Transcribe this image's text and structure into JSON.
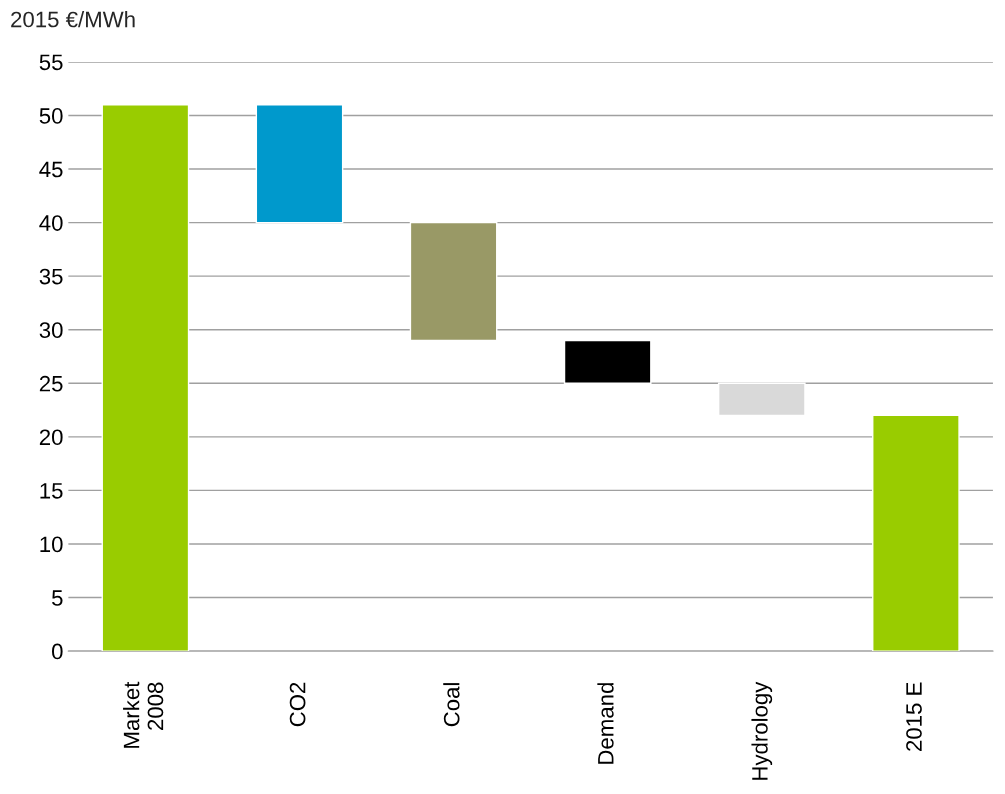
{
  "chart_data": {
    "type": "bar",
    "ylabel": "2015 €/MWh",
    "categories": [
      "Market\n2008",
      "CO2",
      "Coal",
      "Demand",
      "Hydrology",
      "2015 E"
    ],
    "values": [
      51,
      11,
      11,
      4,
      3,
      22
    ],
    "base": [
      0,
      40,
      29,
      25,
      22,
      0
    ],
    "colors": [
      "#99cc00",
      "#0099cc",
      "#999966",
      "#000000",
      "#d9d9d9",
      "#99cc00"
    ],
    "ylim": [
      0,
      55
    ],
    "yticks": [
      0,
      5,
      10,
      15,
      20,
      25,
      30,
      35,
      40,
      45,
      50,
      55
    ],
    "grid": "y"
  }
}
